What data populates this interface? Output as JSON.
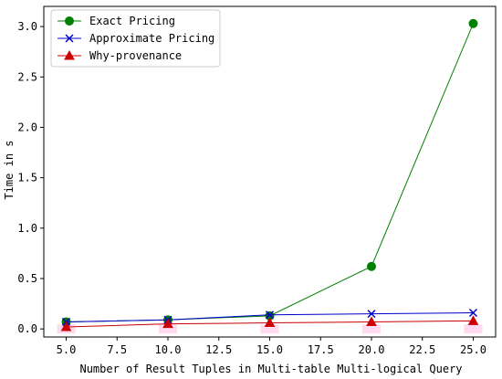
{
  "chart_data": {
    "type": "line",
    "xlabel": "Number of Result Tuples in Multi-table Multi-logical Query",
    "ylabel": "Time in s",
    "xlim": [
      3.9,
      26.1
    ],
    "ylim": [
      -0.08,
      3.2
    ],
    "xticks": [
      5.0,
      7.5,
      10.0,
      12.5,
      15.0,
      17.5,
      20.0,
      22.5,
      25.0
    ],
    "xtick_labels": [
      "5.0",
      "7.5",
      "10.0",
      "12.5",
      "15.0",
      "17.5",
      "20.0",
      "22.5",
      "25.0"
    ],
    "yticks": [
      0.0,
      0.5,
      1.0,
      1.5,
      2.0,
      2.5,
      3.0
    ],
    "ytick_labels": [
      "0.0",
      "0.5",
      "1.0",
      "1.5",
      "2.0",
      "2.5",
      "3.0"
    ],
    "grid": false,
    "legend_position": "top-left",
    "x": [
      5,
      10,
      15,
      20,
      25
    ],
    "series": [
      {
        "name": "Exact Pricing",
        "values": [
          0.07,
          0.09,
          0.13,
          0.62,
          3.03
        ],
        "color": "#008000",
        "marker": "circle"
      },
      {
        "name": "Approximate Pricing",
        "values": [
          0.07,
          0.09,
          0.14,
          0.15,
          0.16
        ],
        "color": "#0000cc",
        "marker": "x"
      },
      {
        "name": "Why-provenance",
        "values": [
          0.02,
          0.05,
          0.06,
          0.07,
          0.08
        ],
        "color": "#cc0000",
        "marker": "triangle"
      }
    ]
  }
}
